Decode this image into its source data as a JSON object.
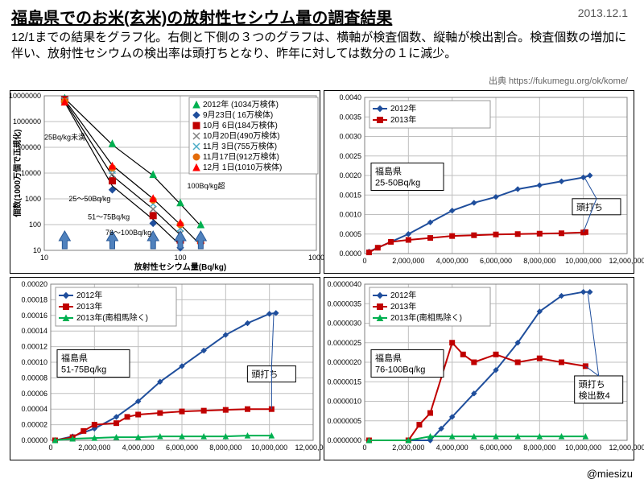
{
  "header": {
    "title": "福島県でのお米(玄米)の放射性セシウム量の調査結果",
    "date": "2013.12.1",
    "subtitle": "12/1までの結果をグラフ化。右側と下側の３つのグラフは、横軸が検査個数、縦軸が検出割合。検査個数の増加に伴い、放射性セシウムの検出率は頭打ちとなり、昨年に対しては数分の１に減少。",
    "source": "出典 https://fukumegu.org/ok/kome/",
    "credit": "@miesizu"
  },
  "panel_tl": {
    "type": "scatter-loglog",
    "xlabel": "放射性セシウム量(Bq/kg)",
    "ylabel": "個数(1000万個で正規化)",
    "xlim_log": [
      1,
      3
    ],
    "ylim_log": [
      1,
      7
    ],
    "xtick_labels": [
      "10",
      "100",
      "1000"
    ],
    "ytick_labels": [
      "10",
      "100",
      "1000",
      "10000",
      "100000",
      "1000000",
      "10000000"
    ],
    "grid_color": "#bfbfbf",
    "background_color": "#ffffff",
    "line_color": "#000000",
    "legend": [
      {
        "marker": "triangle",
        "color": "#00b050",
        "label": "2012年 (1034万検体)"
      },
      {
        "marker": "diamond",
        "color": "#1f4e9c",
        "label": "9月23日( 16万検体)"
      },
      {
        "marker": "square",
        "color": "#c00000",
        "label": "10月 6日(184万検体)"
      },
      {
        "marker": "x",
        "color": "#808080",
        "label": "10月20日(490万検体)"
      },
      {
        "marker": "x",
        "color": "#4bacc6",
        "label": "11月 3日(755万検体)"
      },
      {
        "marker": "circle",
        "color": "#e46c0a",
        "label": "11月17日(912万検体)"
      },
      {
        "marker": "triangle",
        "color": "#ff0000",
        "label": "12月 1日(1010万検体)"
      }
    ],
    "arrow_color": "#4f81bd",
    "arrow_labels": {
      "a": "25Bq/kg未満",
      "b": "25〜50Bq/kg",
      "c": "51〜75Bq/kg",
      "d": "76〜100Bq/kg",
      "e": "100Bq/kg超"
    },
    "lines": [
      {
        "points": [
          [
            1.15,
            6.9
          ],
          [
            1.5,
            5.1
          ],
          [
            1.8,
            3.9
          ],
          [
            2.0,
            2.8
          ],
          [
            2.15,
            1.95
          ]
        ]
      },
      {
        "points": [
          [
            1.15,
            6.85
          ],
          [
            1.5,
            4.3
          ],
          [
            1.8,
            3.0
          ],
          [
            2.0,
            2.0
          ],
          [
            2.15,
            1.2
          ]
        ]
      },
      {
        "points": [
          [
            1.15,
            6.8
          ],
          [
            1.5,
            3.9
          ],
          [
            1.8,
            2.6
          ],
          [
            2.0,
            1.6
          ]
        ]
      },
      {
        "points": [
          [
            1.15,
            6.75
          ],
          [
            1.5,
            3.5
          ],
          [
            1.8,
            2.2
          ],
          [
            2.0,
            1.2
          ]
        ]
      }
    ],
    "series": [
      {
        "marker": "triangle",
        "color": "#00b050",
        "points": [
          [
            1.15,
            6.92
          ],
          [
            1.5,
            5.15
          ],
          [
            1.8,
            3.95
          ],
          [
            2.0,
            2.85
          ],
          [
            2.15,
            2.0
          ]
        ]
      },
      {
        "marker": "diamond",
        "color": "#1f4e9c",
        "points": [
          [
            1.15,
            6.88
          ],
          [
            1.5,
            3.35
          ],
          [
            1.8,
            2.05
          ],
          [
            2.0,
            1.1
          ]
        ]
      },
      {
        "marker": "square",
        "color": "#c00000",
        "points": [
          [
            1.15,
            6.85
          ],
          [
            1.5,
            3.7
          ],
          [
            1.8,
            2.35
          ],
          [
            2.0,
            1.4
          ]
        ]
      },
      {
        "marker": "x",
        "color": "#808080",
        "points": [
          [
            1.15,
            6.82
          ],
          [
            1.5,
            3.95
          ],
          [
            1.8,
            2.6
          ],
          [
            2.0,
            1.65
          ]
        ]
      },
      {
        "marker": "x",
        "color": "#4bacc6",
        "points": [
          [
            1.15,
            6.8
          ],
          [
            1.5,
            4.1
          ],
          [
            1.8,
            2.8
          ],
          [
            2.0,
            1.85
          ]
        ]
      },
      {
        "marker": "circle",
        "color": "#e46c0a",
        "points": [
          [
            1.15,
            6.78
          ],
          [
            1.5,
            4.2
          ],
          [
            1.8,
            2.95
          ],
          [
            2.0,
            2.0
          ],
          [
            2.15,
            1.3
          ]
        ]
      },
      {
        "marker": "triangle",
        "color": "#ff0000",
        "points": [
          [
            1.15,
            6.76
          ],
          [
            1.5,
            4.28
          ],
          [
            1.8,
            3.02
          ],
          [
            2.0,
            2.08
          ],
          [
            2.15,
            1.4
          ]
        ]
      }
    ]
  },
  "panel_tr": {
    "type": "line",
    "box_label": "福島県\n25-50Bq/kg",
    "annotation": "頭打ち",
    "xlim": [
      0,
      12000000
    ],
    "ylim": [
      0,
      0.004
    ],
    "xtick_step": 2000000,
    "ytick_step": 0.0005,
    "xtick_format": "comma",
    "ytick_format": "dec4",
    "grid_color": "#bfbfbf",
    "legend": [
      {
        "marker": "diamond",
        "color": "#1f4e9c",
        "label": "2012年"
      },
      {
        "marker": "square",
        "color": "#c00000",
        "label": "2013年"
      }
    ],
    "series": [
      {
        "marker": "diamond",
        "color": "#1f4e9c",
        "line_w": 2,
        "points": [
          [
            200000,
            5e-05
          ],
          [
            600000,
            0.00015
          ],
          [
            1200000,
            0.0003
          ],
          [
            2000000,
            0.0005
          ],
          [
            3000000,
            0.0008
          ],
          [
            4000000,
            0.0011
          ],
          [
            5000000,
            0.0013
          ],
          [
            6000000,
            0.00145
          ],
          [
            7000000,
            0.00165
          ],
          [
            8000000,
            0.00175
          ],
          [
            9000000,
            0.00185
          ],
          [
            10000000,
            0.00195
          ],
          [
            10300000,
            0.002
          ]
        ]
      },
      {
        "marker": "square",
        "color": "#c00000",
        "line_w": 2,
        "points": [
          [
            200000,
            3e-05
          ],
          [
            600000,
            0.00015
          ],
          [
            1200000,
            0.0003
          ],
          [
            2000000,
            0.00035
          ],
          [
            3000000,
            0.0004
          ],
          [
            4000000,
            0.00045
          ],
          [
            5000000,
            0.00047
          ],
          [
            6000000,
            0.00049
          ],
          [
            7000000,
            0.0005
          ],
          [
            8000000,
            0.00051
          ],
          [
            9000000,
            0.00052
          ],
          [
            10000000,
            0.00054
          ],
          [
            10100000,
            0.00055
          ]
        ]
      }
    ],
    "callout_targets": [
      [
        10000000,
        0.002
      ],
      [
        10000000,
        0.00055
      ]
    ],
    "callout_from": [
      10600000,
      0.0012
    ]
  },
  "panel_bl": {
    "type": "line",
    "box_label": "福島県\n51-75Bq/kg",
    "annotation": "頭打ち",
    "xlim": [
      0,
      12000000
    ],
    "ylim": [
      0,
      0.0002
    ],
    "xtick_step": 2000000,
    "ytick_step": 2e-05,
    "xtick_format": "comma",
    "ytick_format": "dec5",
    "grid_color": "#bfbfbf",
    "legend": [
      {
        "marker": "diamond",
        "color": "#1f4e9c",
        "label": "2012年"
      },
      {
        "marker": "square",
        "color": "#c00000",
        "label": "2013年"
      },
      {
        "marker": "triangle",
        "color": "#00b050",
        "label": "2013年(南相馬除く)"
      }
    ],
    "series": [
      {
        "marker": "diamond",
        "color": "#1f4e9c",
        "line_w": 2,
        "points": [
          [
            200000,
            0.0
          ],
          [
            1000000,
            5e-06
          ],
          [
            2000000,
            1.5e-05
          ],
          [
            3000000,
            3e-05
          ],
          [
            4000000,
            5e-05
          ],
          [
            5000000,
            7.5e-05
          ],
          [
            6000000,
            9.5e-05
          ],
          [
            7000000,
            0.000115
          ],
          [
            8000000,
            0.000135
          ],
          [
            9000000,
            0.00015
          ],
          [
            10000000,
            0.000162
          ],
          [
            10300000,
            0.000163
          ]
        ]
      },
      {
        "marker": "square",
        "color": "#c00000",
        "line_w": 2,
        "points": [
          [
            200000,
            0.0
          ],
          [
            1000000,
            4e-06
          ],
          [
            1500000,
            1.2e-05
          ],
          [
            2000000,
            2e-05
          ],
          [
            3000000,
            2.2e-05
          ],
          [
            3500000,
            3e-05
          ],
          [
            4000000,
            3.3e-05
          ],
          [
            5000000,
            3.5e-05
          ],
          [
            6000000,
            3.7e-05
          ],
          [
            7000000,
            3.8e-05
          ],
          [
            8000000,
            3.9e-05
          ],
          [
            9000000,
            4e-05
          ],
          [
            10100000,
            4e-05
          ]
        ]
      },
      {
        "marker": "triangle",
        "color": "#00b050",
        "line_w": 2,
        "points": [
          [
            200000,
            0.0
          ],
          [
            1000000,
            2e-06
          ],
          [
            2000000,
            3e-06
          ],
          [
            3000000,
            4e-06
          ],
          [
            4000000,
            4e-06
          ],
          [
            5000000,
            5e-06
          ],
          [
            6000000,
            5e-06
          ],
          [
            7000000,
            5e-06
          ],
          [
            8000000,
            5e-06
          ],
          [
            9000000,
            6e-06
          ],
          [
            10100000,
            6e-06
          ]
        ]
      }
    ],
    "callout_targets": [
      [
        10200000,
        0.000163
      ],
      [
        10100000,
        4e-05
      ]
    ],
    "callout_from": [
      10100000,
      8.5e-05
    ]
  },
  "panel_br": {
    "type": "line",
    "box_label": "福島県\n76-100Bq/kg",
    "annotation": "頭打ち\n検出数4",
    "xlim": [
      0,
      12000000
    ],
    "ylim": [
      0,
      4e-06
    ],
    "xtick_step": 2000000,
    "ytick_step": 5e-07,
    "xtick_format": "comma",
    "ytick_format": "dec7",
    "grid_color": "#bfbfbf",
    "legend": [
      {
        "marker": "diamond",
        "color": "#1f4e9c",
        "label": "2012年"
      },
      {
        "marker": "square",
        "color": "#c00000",
        "label": "2013年"
      },
      {
        "marker": "triangle",
        "color": "#00b050",
        "label": "2013年(南相馬除く)"
      }
    ],
    "series": [
      {
        "marker": "diamond",
        "color": "#1f4e9c",
        "line_w": 2,
        "points": [
          [
            200000,
            0.0
          ],
          [
            3000000,
            0.0
          ],
          [
            3500000,
            3e-07
          ],
          [
            4000000,
            6e-07
          ],
          [
            5000000,
            1.2e-06
          ],
          [
            6000000,
            1.8e-06
          ],
          [
            7000000,
            2.5e-06
          ],
          [
            8000000,
            3.3e-06
          ],
          [
            9000000,
            3.7e-06
          ],
          [
            10000000,
            3.8e-06
          ],
          [
            10300000,
            3.8e-06
          ]
        ]
      },
      {
        "marker": "square",
        "color": "#c00000",
        "line_w": 2,
        "points": [
          [
            200000,
            0.0
          ],
          [
            2000000,
            0.0
          ],
          [
            2500000,
            4e-07
          ],
          [
            3000000,
            7e-07
          ],
          [
            4000000,
            2.5e-06
          ],
          [
            4500000,
            2.2e-06
          ],
          [
            5000000,
            2e-06
          ],
          [
            6000000,
            2.2e-06
          ],
          [
            7000000,
            2e-06
          ],
          [
            8000000,
            2.1e-06
          ],
          [
            9000000,
            2e-06
          ],
          [
            10100000,
            1.9e-06
          ]
        ]
      },
      {
        "marker": "triangle",
        "color": "#00b050",
        "line_w": 2,
        "points": [
          [
            200000,
            0.0
          ],
          [
            2000000,
            0.0
          ],
          [
            3000000,
            1e-07
          ],
          [
            4000000,
            1e-07
          ],
          [
            5000000,
            1e-07
          ],
          [
            6000000,
            1e-07
          ],
          [
            7000000,
            1e-07
          ],
          [
            8000000,
            1e-07
          ],
          [
            9000000,
            1e-07
          ],
          [
            10100000,
            1e-07
          ]
        ]
      }
    ],
    "callout_targets": [
      [
        10200000,
        3.8e-06
      ],
      [
        10100000,
        1.9e-06
      ]
    ],
    "callout_from": [
      10700000,
      1.3e-06
    ]
  }
}
